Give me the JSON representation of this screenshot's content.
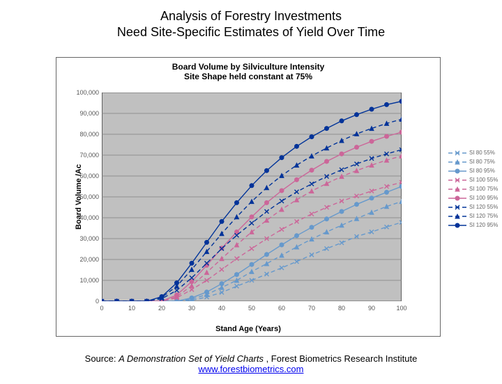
{
  "slide": {
    "title_l1": "Analysis of Forestry Investments",
    "title_l2": "Need Site-Specific Estimates of Yield Over Time"
  },
  "chart": {
    "type": "line",
    "title_l1": "Board Volume by Silviculture Intensity",
    "title_l2": "Site Shape held constant at 75%",
    "xlabel": "Stand Age (Years)",
    "ylabel": "Board Volume /Ac",
    "xlim": [
      0,
      100
    ],
    "xtick_step": 10,
    "ylim": [
      0,
      100000
    ],
    "ytick_step": 10000,
    "plot_bg": "#c0c0c0",
    "grid_color": "#808080",
    "axis_color": "#000000",
    "label_fontsize": 11,
    "title_fontsize": 12,
    "tick_fontsize": 9,
    "x": [
      0,
      5,
      10,
      15,
      20,
      25,
      30,
      35,
      40,
      45,
      50,
      55,
      60,
      65,
      70,
      75,
      80,
      85,
      90,
      95,
      100
    ],
    "series": [
      {
        "name": "SI 80 55%",
        "color": "#6699cc",
        "dash": "6 4",
        "marker": "x",
        "y": [
          0,
          0,
          0,
          0,
          0,
          0,
          400,
          2000,
          4200,
          7200,
          10000,
          13000,
          16000,
          19000,
          22200,
          25200,
          28000,
          31000,
          33200,
          35600,
          37800
        ]
      },
      {
        "name": "SI 80 75%",
        "color": "#6699cc",
        "dash": "6 4",
        "marker": "triangle",
        "y": [
          0,
          0,
          0,
          0,
          0,
          0,
          1000,
          3200,
          6600,
          10000,
          14200,
          18000,
          22000,
          26000,
          29800,
          33200,
          36400,
          39600,
          42600,
          45400,
          47800
        ]
      },
      {
        "name": "SI 80 95%",
        "color": "#6699cc",
        "dash": "",
        "marker": "circle",
        "y": [
          0,
          0,
          0,
          0,
          0,
          0,
          1600,
          4400,
          8400,
          12800,
          17600,
          22400,
          27000,
          31400,
          35400,
          39400,
          43000,
          46400,
          49400,
          52200,
          55000
        ]
      },
      {
        "name": "SI 100 55%",
        "color": "#cc6699",
        "dash": "6 4",
        "marker": "x",
        "y": [
          0,
          0,
          0,
          0,
          0,
          1600,
          5600,
          10000,
          15200,
          20400,
          25200,
          30000,
          34400,
          38200,
          41800,
          45000,
          48000,
          50400,
          52800,
          55000,
          57000
        ]
      },
      {
        "name": "SI 100 75%",
        "color": "#cc6699",
        "dash": "6 4",
        "marker": "triangle",
        "y": [
          0,
          0,
          0,
          0,
          0,
          2200,
          7400,
          13800,
          20400,
          27000,
          33200,
          38800,
          44000,
          48600,
          52800,
          56400,
          59800,
          62600,
          65200,
          67600,
          69600
        ]
      },
      {
        "name": "SI 100 95%",
        "color": "#cc6699",
        "dash": "",
        "marker": "circle",
        "y": [
          0,
          0,
          0,
          0,
          0,
          3000,
          9400,
          17200,
          25400,
          33200,
          40400,
          47200,
          53000,
          58200,
          62800,
          67000,
          70600,
          73800,
          76600,
          79000,
          81000
        ]
      },
      {
        "name": "SI 120 55%",
        "color": "#003399",
        "dash": "6 4",
        "marker": "x",
        "y": [
          0,
          0,
          0,
          0,
          1200,
          5200,
          11200,
          18200,
          25200,
          31600,
          37400,
          43000,
          48000,
          52400,
          56200,
          59800,
          63000,
          65800,
          68400,
          70600,
          72600
        ]
      },
      {
        "name": "SI 120 75%",
        "color": "#003399",
        "dash": "6 4",
        "marker": "triangle",
        "y": [
          0,
          0,
          0,
          0,
          1800,
          7200,
          15200,
          23800,
          32400,
          40400,
          47800,
          54400,
          60200,
          65200,
          69600,
          73400,
          77000,
          80200,
          82800,
          85200,
          87200
        ]
      },
      {
        "name": "SI 120 95%",
        "color": "#003399",
        "dash": "",
        "marker": "circle",
        "y": [
          0,
          0,
          0,
          0,
          2200,
          8800,
          18200,
          28200,
          38200,
          47200,
          55400,
          62600,
          68800,
          74200,
          78800,
          82800,
          86400,
          89400,
          92000,
          94200,
          95800
        ]
      }
    ]
  },
  "footer": {
    "text": "Source: ",
    "italic": "A Demonstration Set of Yield Charts",
    "rest": ", Forest Biometrics Research Institute",
    "link": "www.forestbiometrics.com"
  }
}
